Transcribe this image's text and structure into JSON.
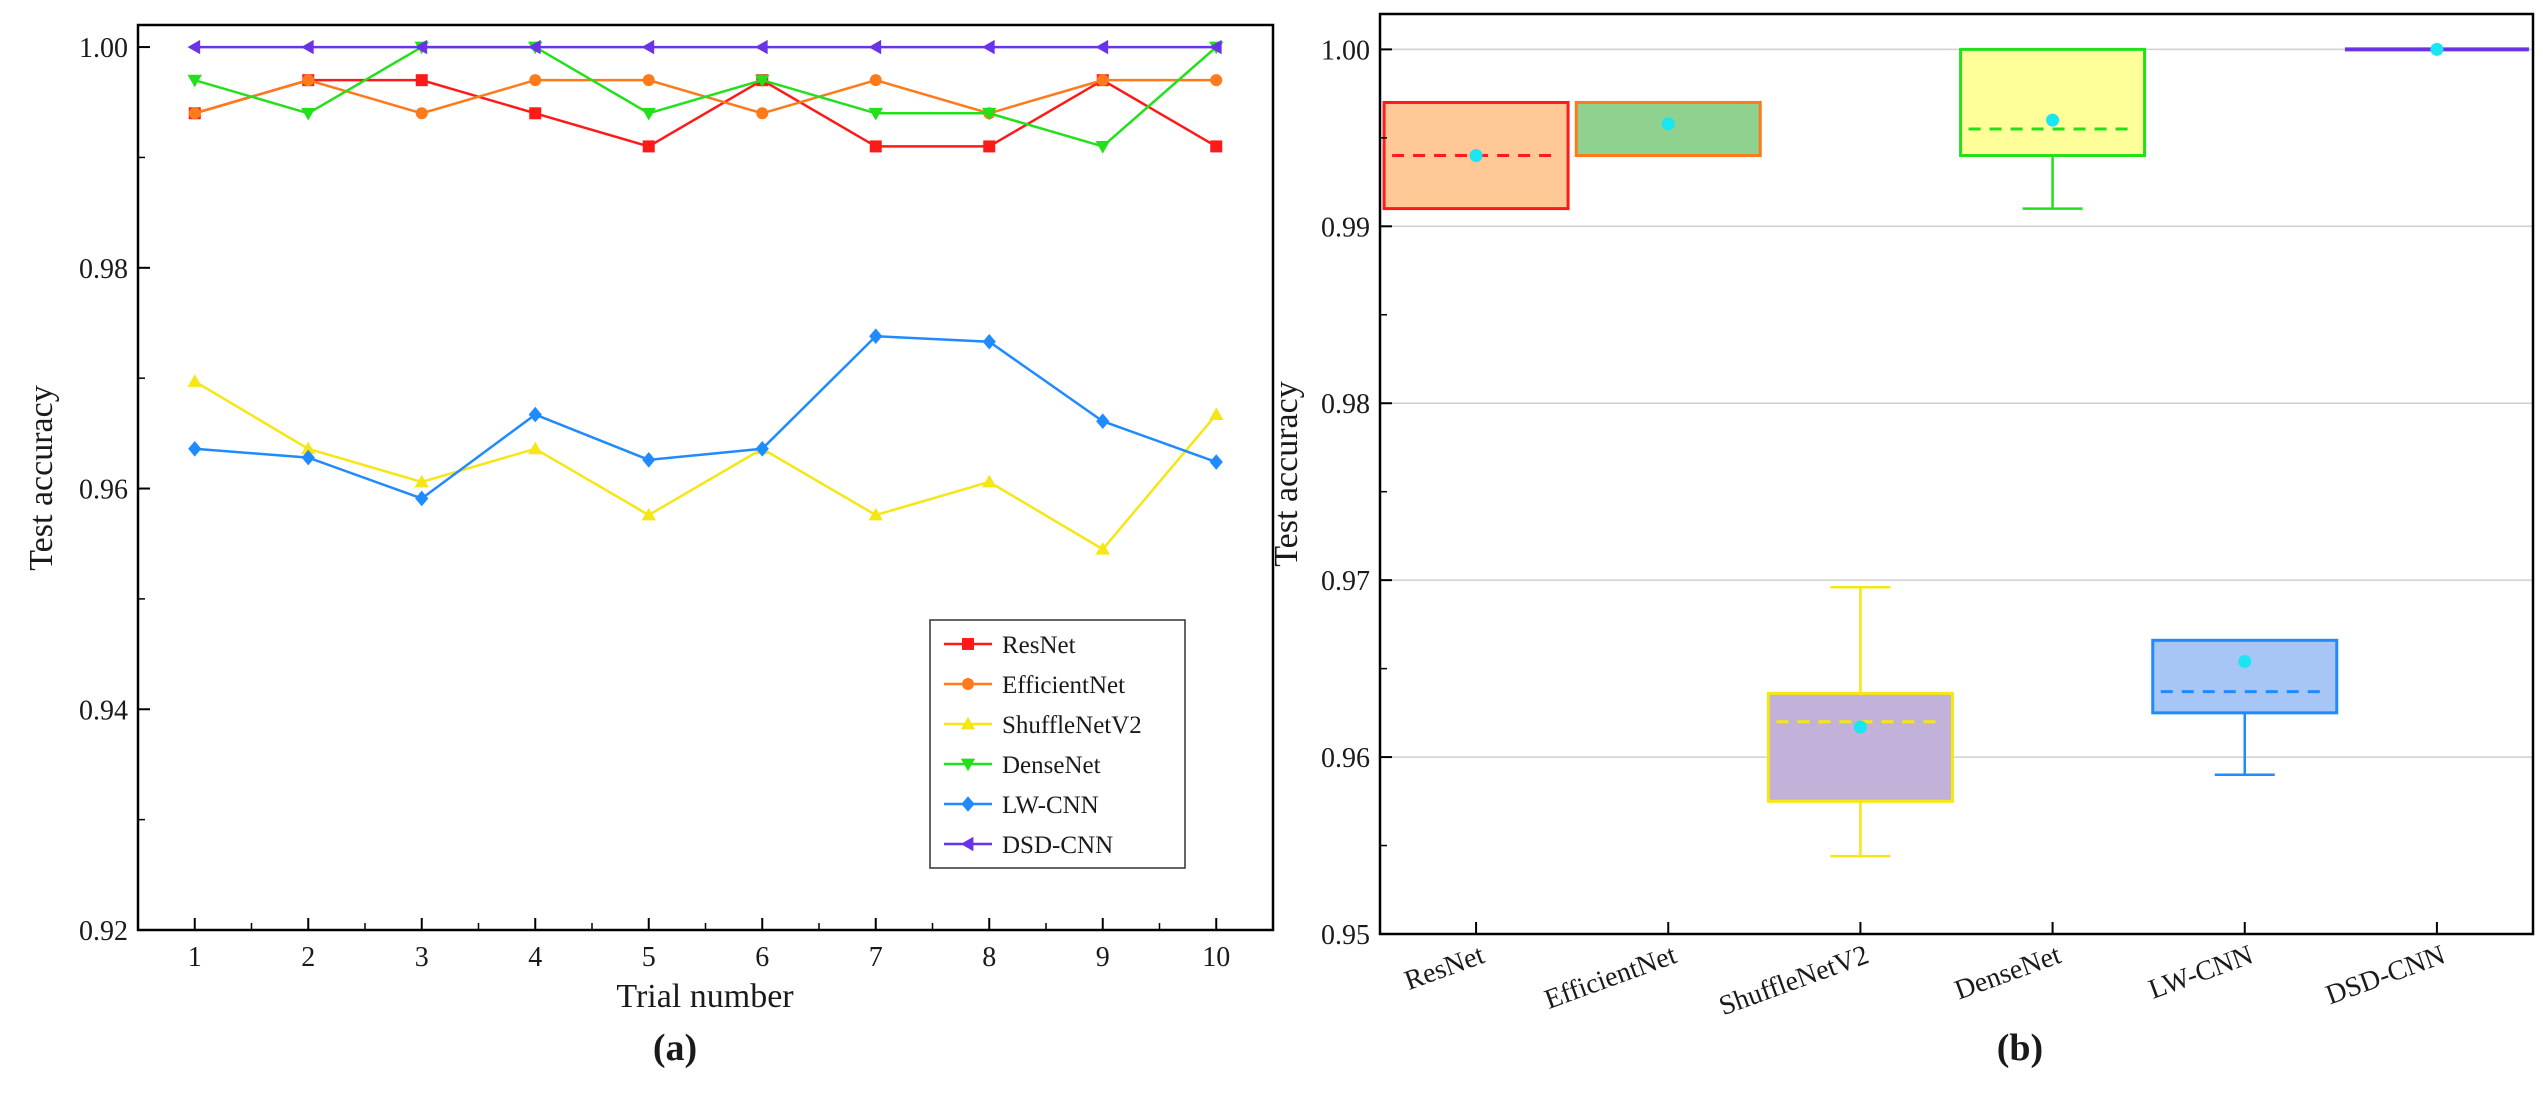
{
  "chart_data": [
    {
      "type": "line",
      "panel_label": "(a)",
      "xlabel": "Trial number",
      "ylabel": "Test accuracy",
      "xlim": [
        0.5,
        10.5
      ],
      "ylim": [
        0.92,
        1.002
      ],
      "x": [
        1,
        2,
        3,
        4,
        5,
        6,
        7,
        8,
        9,
        10
      ],
      "x_ticks": [
        "1",
        "2",
        "3",
        "4",
        "5",
        "6",
        "7",
        "8",
        "9",
        "10"
      ],
      "y_ticks": [
        0.92,
        0.94,
        0.96,
        0.98,
        1.0
      ],
      "y_tick_labels": [
        "0.92",
        "0.94",
        "0.96",
        "0.98",
        "1.00"
      ],
      "legend_position": "bottom-right",
      "series": [
        {
          "name": "ResNet",
          "color": "#ff1a1a",
          "marker": "square",
          "values": [
            0.994,
            0.997,
            0.997,
            0.994,
            0.991,
            0.997,
            0.991,
            0.991,
            0.997,
            0.991
          ]
        },
        {
          "name": "EfficientNet",
          "color": "#ff7a1a",
          "marker": "circle",
          "values": [
            0.994,
            0.997,
            0.994,
            0.997,
            0.997,
            0.994,
            0.997,
            0.994,
            0.997,
            0.997
          ]
        },
        {
          "name": "ShuffleNetV2",
          "color": "#f5e614",
          "marker": "triangle-up",
          "values": [
            0.9697,
            0.9636,
            0.9606,
            0.9636,
            0.9576,
            0.9636,
            0.9576,
            0.9606,
            0.9545,
            0.9667
          ]
        },
        {
          "name": "DenseNet",
          "color": "#22e01a",
          "marker": "triangle-down",
          "values": [
            0.997,
            0.994,
            1.0,
            1.0,
            0.994,
            0.997,
            0.994,
            0.994,
            0.991,
            1.0
          ]
        },
        {
          "name": "LW-CNN",
          "color": "#1f8bff",
          "marker": "diamond",
          "values": [
            0.9636,
            0.9628,
            0.9591,
            0.9667,
            0.9626,
            0.9636,
            0.9738,
            0.9733,
            0.9661,
            0.9624
          ]
        },
        {
          "name": "DSD-CNN",
          "color": "#6b33e8",
          "marker": "triangle-left",
          "values": [
            1.0,
            1.0,
            1.0,
            1.0,
            1.0,
            1.0,
            1.0,
            1.0,
            1.0,
            1.0
          ]
        }
      ]
    },
    {
      "type": "box",
      "panel_label": "(b)",
      "xlabel": "",
      "ylabel": "Test accuracy",
      "ylim": [
        0.95,
        1.002
      ],
      "y_ticks": [
        0.95,
        0.96,
        0.97,
        0.98,
        0.99,
        1.0
      ],
      "y_tick_labels": [
        "0.95",
        "0.96",
        "0.97",
        "0.98",
        "0.99",
        "1.00"
      ],
      "grid": true,
      "categories": [
        "ResNet",
        "EfficientNet",
        "ShuffleNetV2",
        "DenseNet",
        "LW-CNN",
        "DSD-CNN"
      ],
      "boxes": [
        {
          "name": "ResNet",
          "color": "#ff1a1a",
          "fill": "#ffc896",
          "q1": 0.991,
          "q3": 0.997,
          "median": 0.994,
          "whisker_low": 0.991,
          "whisker_high": 0.997,
          "mean": 0.994
        },
        {
          "name": "EfficientNet",
          "color": "#ff7a1a",
          "fill": "#8fd18f",
          "q1": 0.994,
          "q3": 0.997,
          "median": 0.997,
          "whisker_low": 0.994,
          "whisker_high": 0.997,
          "mean": 0.9958
        },
        {
          "name": "ShuffleNetV2",
          "color": "#f5e614",
          "fill": "#c2b2d9",
          "q1": 0.9575,
          "q3": 0.9636,
          "median": 0.962,
          "whisker_low": 0.9544,
          "whisker_high": 0.9696,
          "mean": 0.9617
        },
        {
          "name": "DenseNet",
          "color": "#22e01a",
          "fill": "#ffff99",
          "q1": 0.994,
          "q3": 1.0,
          "median": 0.9955,
          "whisker_low": 0.991,
          "whisker_high": 1.0,
          "mean": 0.996
        },
        {
          "name": "LW-CNN",
          "color": "#1f8bff",
          "fill": "#a8c6f5",
          "q1": 0.9625,
          "q3": 0.9666,
          "median": 0.9637,
          "whisker_low": 0.959,
          "whisker_high": 0.9666,
          "mean": 0.9654
        },
        {
          "name": "DSD-CNN",
          "color": "#6b33e8",
          "fill": "#c7b3f0",
          "q1": 1.0,
          "q3": 1.0,
          "median": 1.0,
          "whisker_low": 1.0,
          "whisker_high": 1.0,
          "mean": 1.0
        }
      ],
      "mean_marker_color": "#19e6f0"
    }
  ]
}
